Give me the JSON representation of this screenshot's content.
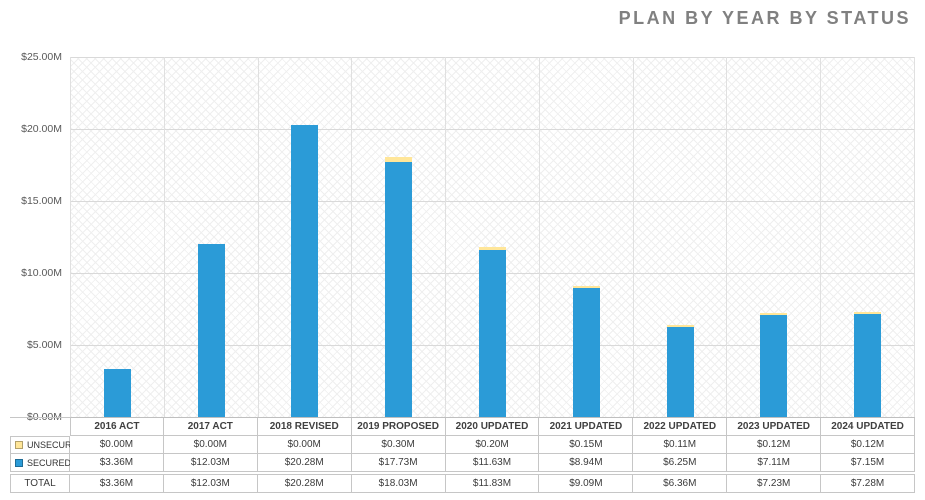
{
  "title": "PLAN BY YEAR BY STATUS",
  "chart_data": {
    "type": "bar",
    "stacked": true,
    "title": "PLAN BY YEAR BY STATUS",
    "grid": true,
    "legend_position": "table-left",
    "ylim": [
      0,
      25
    ],
    "y_ticks": [
      "$25.00M",
      "$20.00M",
      "$15.00M",
      "$10.00M",
      "$5.00M",
      "$0.00M"
    ],
    "categories": [
      "2016 ACT",
      "2017 ACT",
      "2018 REVISED",
      "2019 PROPOSED",
      "2020 UPDATED",
      "2021 UPDATED",
      "2022 UPDATED",
      "2023 UPDATED",
      "2024 UPDATED"
    ],
    "series": [
      {
        "name": "UNSECURED",
        "color": "#FFE699",
        "values_m": [
          0.0,
          0.0,
          0.0,
          0.3,
          0.2,
          0.15,
          0.11,
          0.12,
          0.12
        ],
        "labels": [
          "$0.00M",
          "$0.00M",
          "$0.00M",
          "$0.30M",
          "$0.20M",
          "$0.15M",
          "$0.11M",
          "$0.12M",
          "$0.12M"
        ]
      },
      {
        "name": "SECURED",
        "color": "#2B9BD7",
        "values_m": [
          3.36,
          12.03,
          20.28,
          17.73,
          11.63,
          8.94,
          6.25,
          7.11,
          7.15
        ],
        "labels": [
          "$3.36M",
          "$12.03M",
          "$20.28M",
          "$17.73M",
          "$11.63M",
          "$8.94M",
          "$6.25M",
          "$7.11M",
          "$7.15M"
        ]
      }
    ],
    "totals": {
      "name": "TOTAL",
      "labels": [
        "$3.36M",
        "$12.03M",
        "$20.28M",
        "$18.03M",
        "$11.83M",
        "$9.09M",
        "$6.36M",
        "$7.23M",
        "$7.28M"
      ]
    }
  }
}
